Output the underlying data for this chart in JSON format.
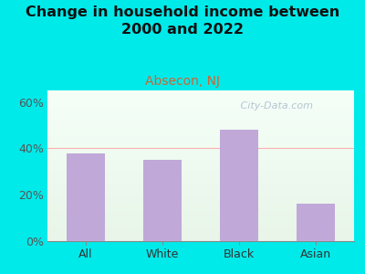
{
  "title": "Change in household income between\n2000 and 2022",
  "subtitle": "Absecon, NJ",
  "categories": [
    "All",
    "White",
    "Black",
    "Asian"
  ],
  "values": [
    38,
    35,
    48,
    16
  ],
  "bar_color": "#c0a8d8",
  "outer_bg_color": "#00eaea",
  "plot_bg_color_top": "#e8f5e8",
  "plot_bg_color_bottom": "#f5fff8",
  "title_fontsize": 11.5,
  "subtitle_fontsize": 10,
  "subtitle_color": "#cc6633",
  "tick_label_fontsize": 9,
  "yticks": [
    0,
    20,
    40,
    60
  ],
  "ylim": [
    0,
    65
  ],
  "hline_y": 40,
  "hline_color": "#ffb0b0",
  "watermark": " City-Data.com",
  "watermark_color": "#aabbcc"
}
